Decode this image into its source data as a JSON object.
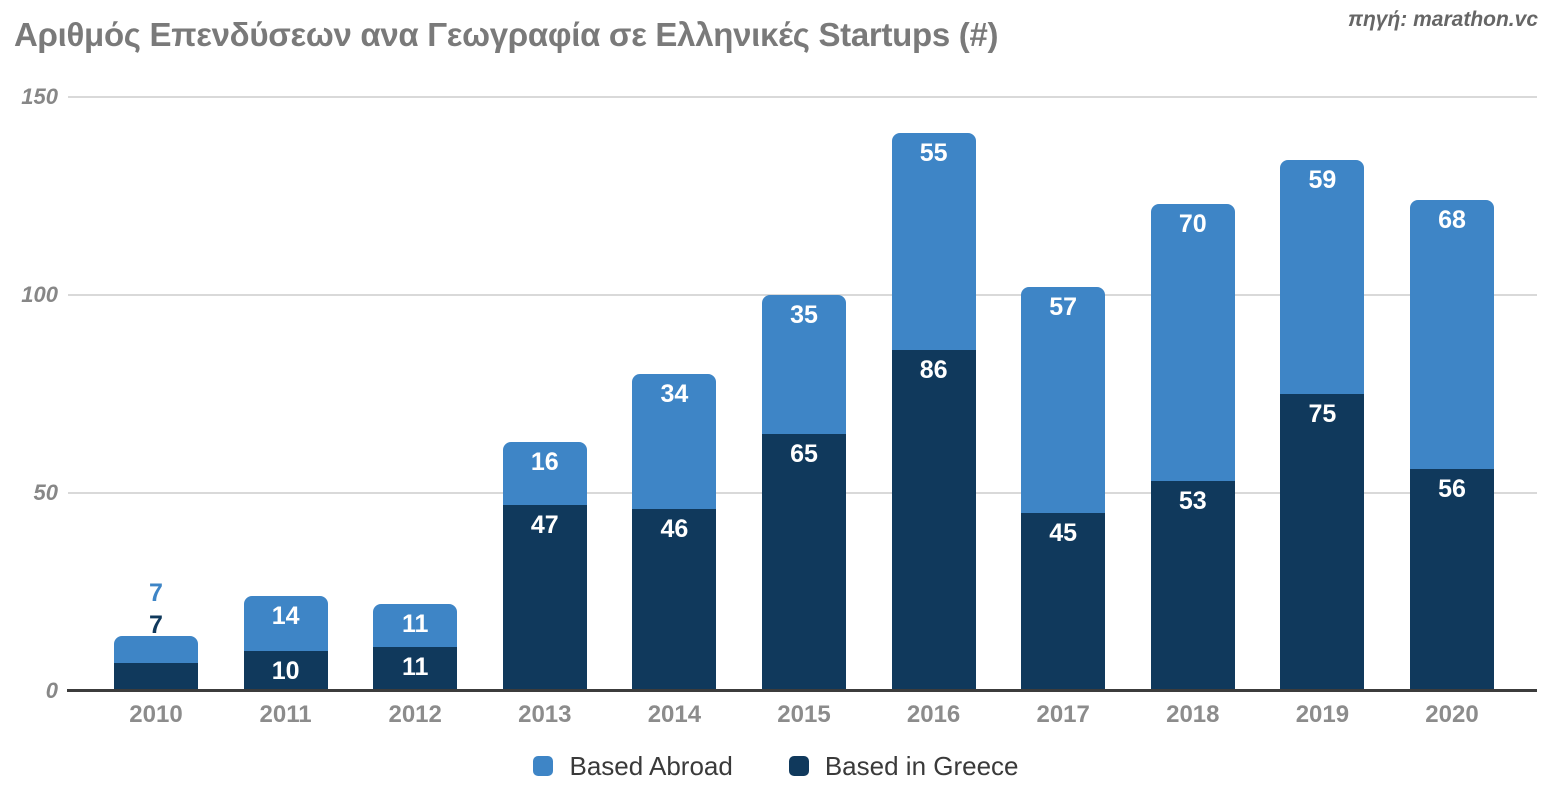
{
  "header": {
    "title": "Αριθμός Επενδύσεων ανα Γεωγραφία σε Ελληνικές Startups (#)",
    "source": "πηγή: marathon.vc"
  },
  "colors": {
    "abroad": "#3E85C6",
    "greece": "#10395C",
    "gridline": "#d9d9d9",
    "axis": "#3c3c3c"
  },
  "y_axis": {
    "ticks": [
      0,
      50,
      100,
      150
    ]
  },
  "legend": {
    "items": [
      {
        "label": "Based Abroad",
        "series_key": "abroad"
      },
      {
        "label": "Based in Greece",
        "series_key": "greece"
      }
    ]
  },
  "chart_data": {
    "type": "bar",
    "stacked": true,
    "title": "Αριθμός Επενδύσεων ανα Γεωγραφία σε Ελληνικές Startups (#)",
    "xlabel": "",
    "ylabel": "",
    "ylim": [
      0,
      150
    ],
    "grid": true,
    "legend_position": "bottom",
    "categories": [
      "2010",
      "2011",
      "2012",
      "2013",
      "2014",
      "2015",
      "2016",
      "2017",
      "2018",
      "2019",
      "2020"
    ],
    "series": [
      {
        "name": "Based Abroad",
        "key": "abroad",
        "color": "#3E85C6",
        "stack_order": "top",
        "values": [
          7,
          14,
          11,
          16,
          34,
          35,
          55,
          57,
          70,
          59,
          68
        ]
      },
      {
        "name": "Based in Greece",
        "key": "greece",
        "color": "#10395C",
        "stack_order": "bottom",
        "values": [
          7,
          10,
          11,
          47,
          46,
          65,
          86,
          45,
          53,
          75,
          56
        ]
      }
    ],
    "totals": [
      14,
      24,
      22,
      63,
      80,
      100,
      141,
      102,
      123,
      134,
      124
    ]
  }
}
